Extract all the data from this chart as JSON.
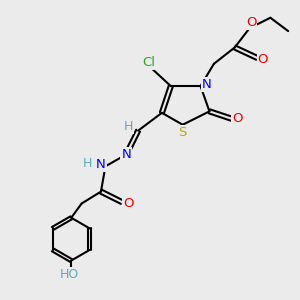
{
  "background_color": "#ebebeb",
  "atom_colors": {
    "C": "#000000",
    "H": "#5aacbc",
    "N": "#0000ee",
    "O": "#ee0000",
    "S": "#bbaa00",
    "Cl": "#22aa22"
  },
  "figsize": [
    3.0,
    3.0
  ],
  "dpi": 100,
  "xlim": [
    0,
    10
  ],
  "ylim": [
    0,
    10
  ]
}
